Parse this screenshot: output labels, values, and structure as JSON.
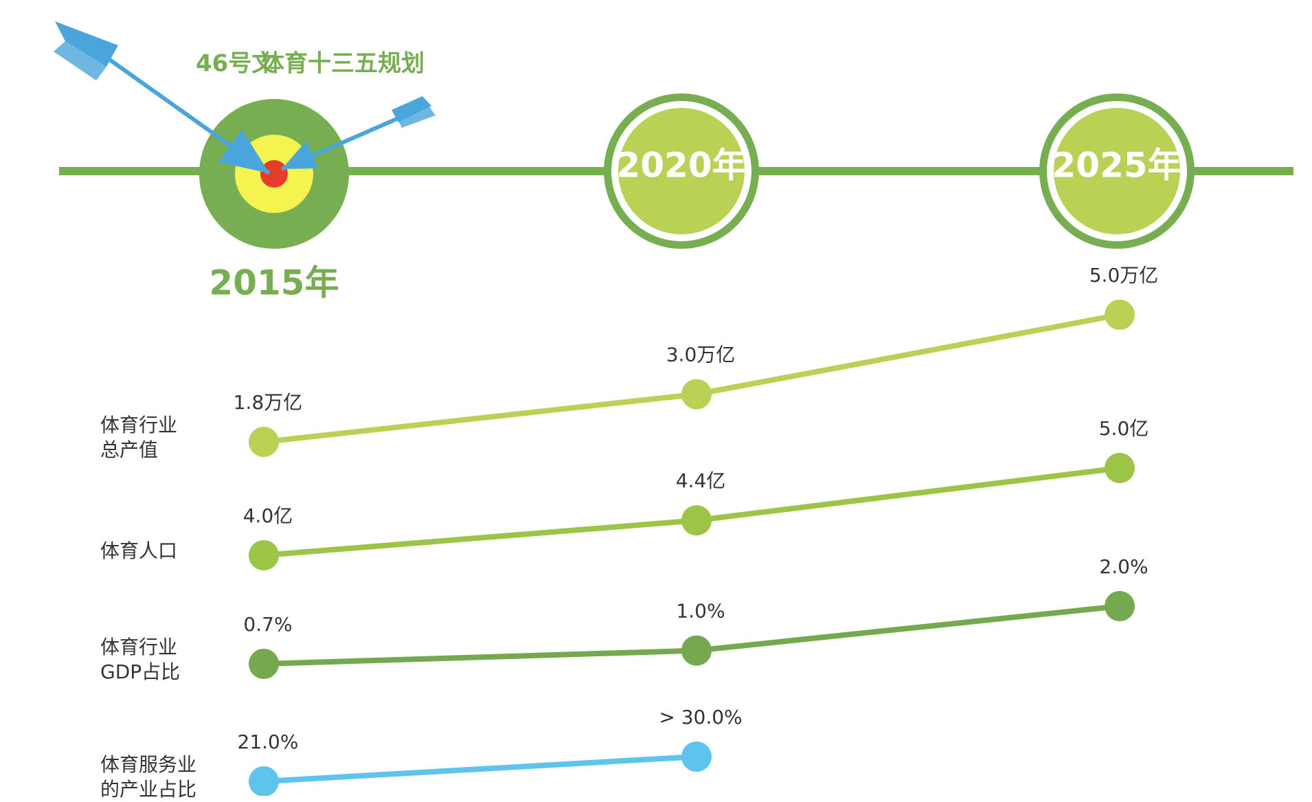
{
  "chart_data": {
    "type": "line",
    "annotations": [
      "46号文",
      "体育十三五规划"
    ],
    "categories": [
      "2015年",
      "2020年",
      "2025年"
    ],
    "series": [
      {
        "name": "体育行业\n总产值",
        "color": "#b9d255",
        "values": [
          1.8,
          3.0,
          5.0
        ],
        "value_labels": [
          "1.8万亿",
          "3.0万亿",
          "5.0万亿"
        ]
      },
      {
        "name": "体育人口",
        "color": "#9cc446",
        "values": [
          4.0,
          4.4,
          5.0
        ],
        "value_labels": [
          "4.0亿",
          "4.4亿",
          "5.0亿"
        ]
      },
      {
        "name": "体育行业\nGDP占比",
        "color": "#75a94f",
        "values": [
          0.7,
          1.0,
          2.0
        ],
        "value_labels": [
          "0.7%",
          "1.0%",
          "2.0%"
        ]
      },
      {
        "name": "体育服务业\n的产业占比",
        "color": "#5ec4ee",
        "values": [
          21.0,
          30.0,
          null
        ],
        "value_labels": [
          "21.0%",
          "> 30.0%",
          null
        ]
      }
    ]
  }
}
